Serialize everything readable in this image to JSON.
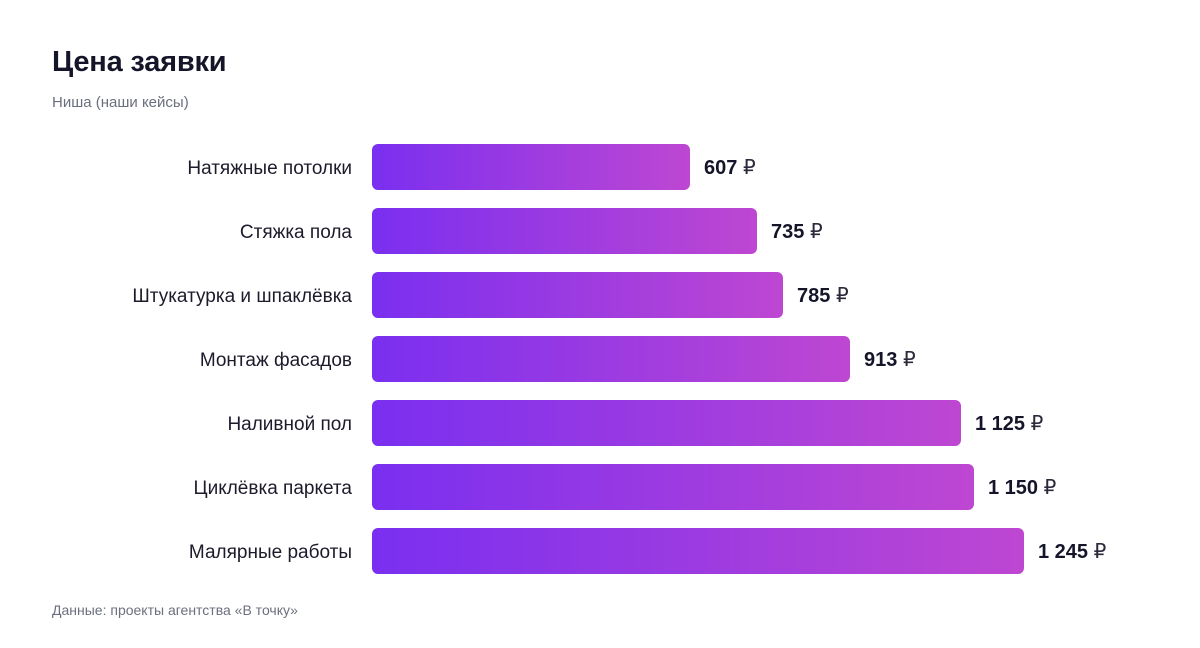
{
  "chart_data": {
    "type": "bar",
    "orientation": "horizontal",
    "title": "Цена заявки",
    "subtitle": "Ниша (наши кейсы)",
    "source": "Данные: проекты агентства «В точку»",
    "unit": "₽",
    "categories": [
      "Натяжные потолки",
      "Стяжка пола",
      "Штукатурка и шпаклёвка",
      "Монтаж фасадов",
      "Наливной пол",
      "Циклёвка паркета",
      "Малярные работы"
    ],
    "values": [
      607,
      735,
      785,
      913,
      1125,
      1150,
      1245
    ],
    "value_labels": [
      "607",
      "735",
      "785",
      "913",
      "1 125",
      "1 150",
      "1 245"
    ],
    "xlim": [
      0,
      1245
    ],
    "grid": false,
    "colors": {
      "bar_start": "#7a2ff0",
      "bar_end": "#be47d2"
    }
  }
}
